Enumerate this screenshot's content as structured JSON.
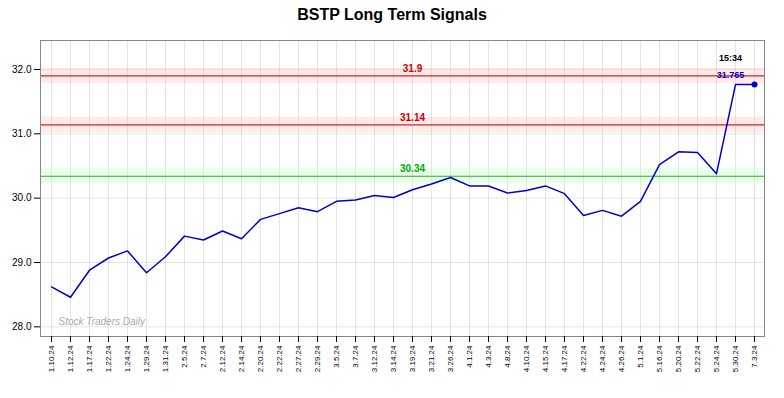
{
  "chart_data": {
    "type": "line",
    "title": "BSTP Long Term Signals",
    "categories": [
      "1.10.24",
      "1.12.24",
      "1.17.24",
      "1.22.24",
      "1.24.24",
      "1.29.24",
      "1.31.24",
      "2.5.24",
      "2.7.24",
      "2.12.24",
      "2.14.24",
      "2.20.24",
      "2.22.24",
      "2.27.24",
      "2.29.24",
      "3.5.24",
      "3.7.24",
      "3.12.24",
      "3.14.24",
      "3.19.24",
      "3.21.24",
      "3.26.24",
      "4.1.24",
      "4.3.24",
      "4.8.24",
      "4.10.24",
      "4.15.24",
      "4.17.24",
      "4.22.24",
      "4.24.24",
      "4.26.24",
      "5.1.24",
      "5.16.24",
      "5.20.24",
      "5.22.24",
      "5.24.24",
      "5.30.24",
      "7.3.24"
    ],
    "values": [
      28.62,
      28.46,
      28.88,
      29.07,
      29.18,
      28.84,
      29.09,
      29.41,
      29.35,
      29.49,
      29.37,
      29.67,
      29.76,
      29.85,
      29.79,
      29.95,
      29.97,
      30.04,
      30.01,
      30.13,
      30.22,
      30.32,
      30.19,
      30.19,
      30.08,
      30.12,
      30.19,
      30.07,
      29.73,
      29.81,
      29.72,
      29.95,
      30.52,
      30.72,
      30.71,
      30.38,
      31.765,
      31.765
    ],
    "color": "#0000cc",
    "reference_lines": [
      {
        "value": 31.9,
        "color": "#cc0000",
        "band_color": "#ffaaaa"
      },
      {
        "value": 31.14,
        "color": "#cc0000",
        "band_color": "#ffaaaa"
      },
      {
        "value": 30.34,
        "color": "#00aa00",
        "band_color": "#aaffaa"
      }
    ],
    "last_point": {
      "category": "7.3.24",
      "value": 31.765,
      "label": "15:34",
      "label_color": "#000000"
    },
    "annotations": [
      {
        "text": "Stock Traders Daily",
        "color": "#aaaaaa"
      }
    ],
    "ylim": [
      27.85,
      32.45
    ],
    "yticks": [
      28,
      29,
      30,
      31,
      32
    ],
    "grid": true
  }
}
